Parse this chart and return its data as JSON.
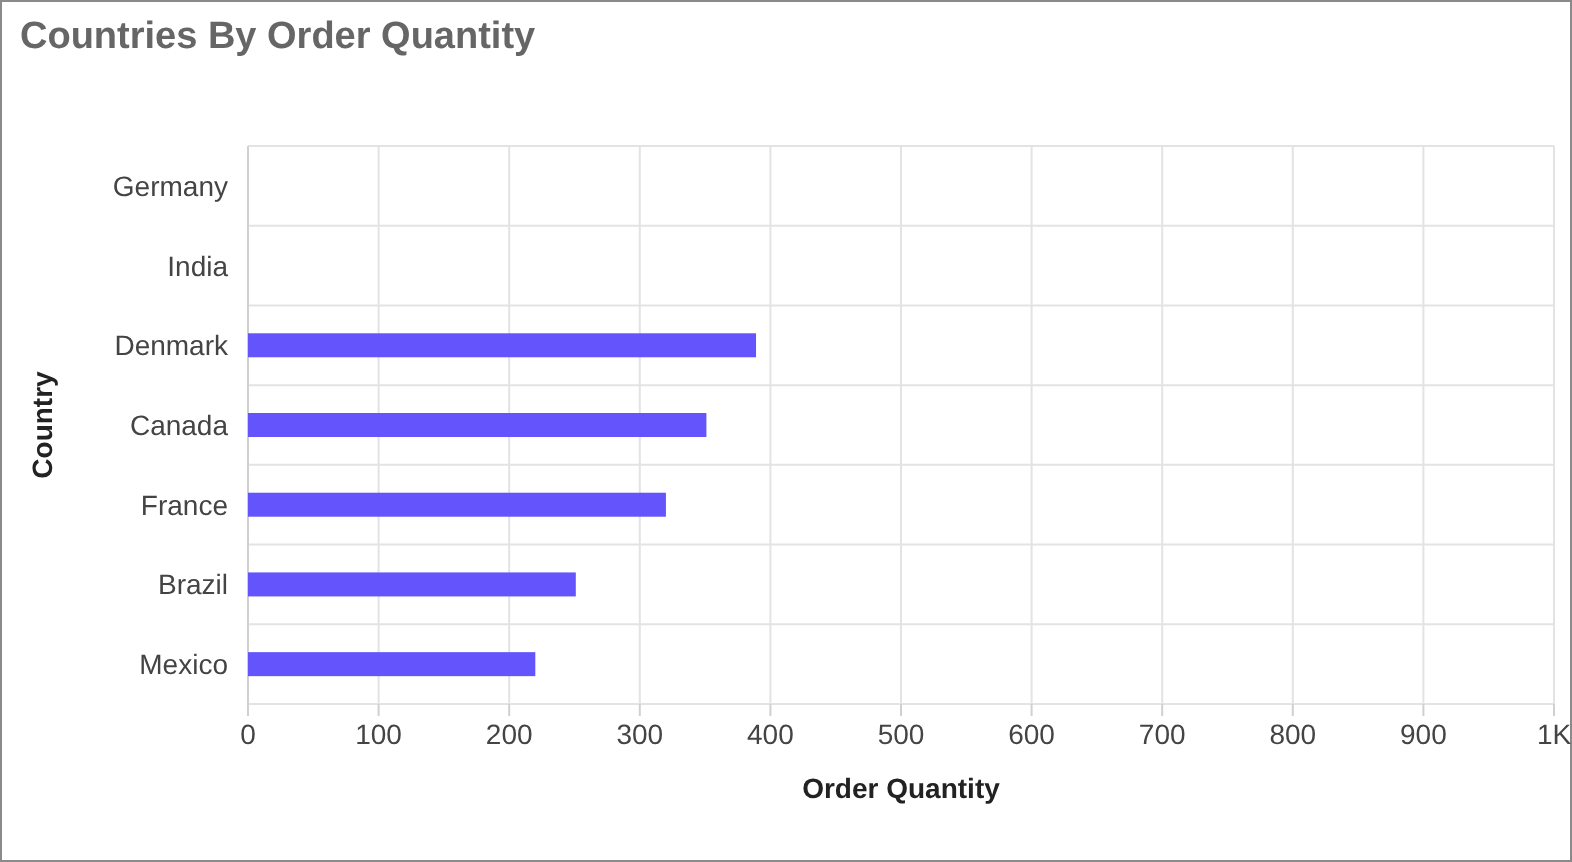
{
  "chart_data": {
    "type": "bar",
    "orientation": "horizontal",
    "title": "Countries By Order Quantity",
    "xlabel": "Order Quantity",
    "ylabel": "Country",
    "categories": [
      "Germany",
      "India",
      "Denmark",
      "Canada",
      "France",
      "Brazil",
      "Mexico"
    ],
    "values": [
      null,
      null,
      389,
      351,
      320,
      251,
      220
    ],
    "color": "#6355fb",
    "xlim": [
      0,
      1000
    ],
    "xticks": [
      0,
      100,
      200,
      300,
      400,
      500,
      600,
      700,
      800,
      900,
      {
        "value": 1000,
        "label": "1K"
      }
    ],
    "grid": true
  }
}
